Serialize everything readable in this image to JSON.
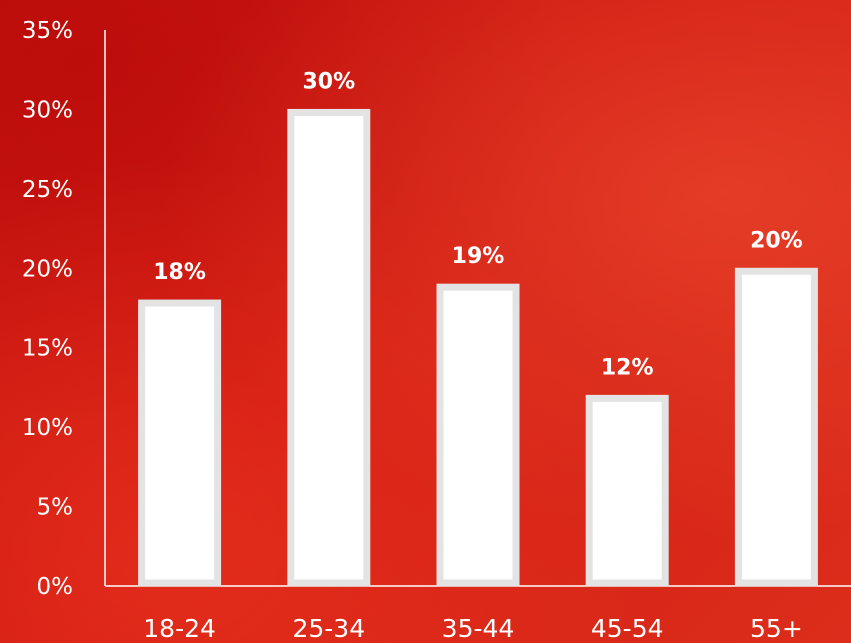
{
  "chart_data": {
    "type": "bar",
    "categories": [
      "18-24",
      "25-34",
      "35-44",
      "45-54",
      "55+"
    ],
    "values": [
      18,
      30,
      19,
      12,
      20
    ],
    "data_labels": [
      "18%",
      "30%",
      "19%",
      "12%",
      "20%"
    ],
    "y_ticks": [
      "0%",
      "5%",
      "10%",
      "15%",
      "20%",
      "25%",
      "30%",
      "35%"
    ],
    "ylim": [
      0,
      35
    ],
    "y_tick_step": 5,
    "grid": false,
    "legend": "none",
    "colors": {
      "bar_fill": "#ffffff",
      "bar_border": "#e3e3e3",
      "text": "#ffffff",
      "axis": "#ffffff",
      "background": "#d01d13"
    }
  }
}
